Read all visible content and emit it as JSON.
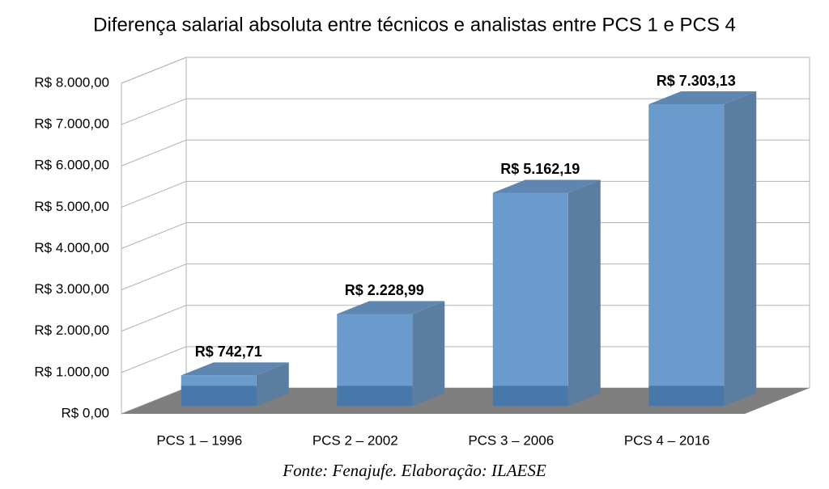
{
  "chart_data": {
    "type": "bar3d",
    "title": "Diferença salarial absoluta entre técnicos e analistas entre PCS 1 e PCS 4",
    "categories": [
      "PCS 1 – 1996",
      "PCS 2 – 2002",
      "PCS 3 – 2006",
      "PCS 4 – 2016"
    ],
    "values": [
      742.71,
      2228.99,
      5162.19,
      7303.13
    ],
    "value_labels": [
      "R$ 742,71",
      "R$ 2.228,99",
      "R$ 5.162,19",
      "R$ 7.303,13"
    ],
    "color": "#6b9bcc",
    "ylim": [
      0,
      8000
    ],
    "yticks": [
      {
        "value": 0,
        "label": "R$ 0,00"
      },
      {
        "value": 1000,
        "label": "R$ 1.000,00"
      },
      {
        "value": 2000,
        "label": "R$ 2.000,00"
      },
      {
        "value": 3000,
        "label": "R$ 3.000,00"
      },
      {
        "value": 4000,
        "label": "R$ 4.000,00"
      },
      {
        "value": 5000,
        "label": "R$ 5.000,00"
      },
      {
        "value": 6000,
        "label": "R$ 6.000,00"
      },
      {
        "value": 7000,
        "label": "R$ 7.000,00"
      },
      {
        "value": 8000,
        "label": "R$ 8.000,00"
      }
    ],
    "grid": true,
    "source": "Fonte: Fenajufe. Elaboração: ILAESE"
  }
}
